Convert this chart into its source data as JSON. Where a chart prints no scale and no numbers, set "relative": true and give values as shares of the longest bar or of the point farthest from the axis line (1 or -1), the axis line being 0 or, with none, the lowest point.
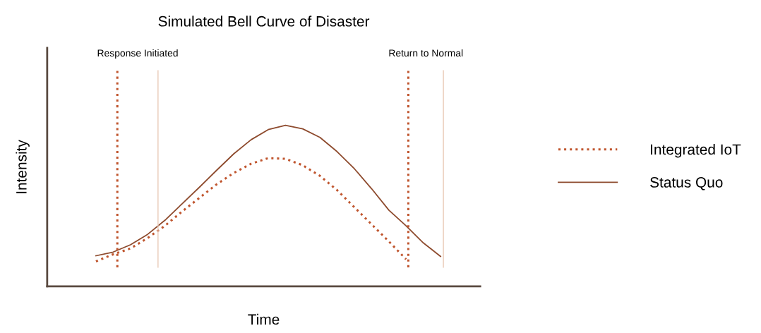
{
  "chart_data": {
    "type": "line",
    "title": "Simulated Bell Curve of Disaster",
    "xlabel": "Time",
    "ylabel": "Intensity",
    "relative": true,
    "categories": [
      null,
      null,
      null,
      null,
      null,
      null,
      null,
      null,
      null,
      null,
      null,
      null,
      null,
      null,
      null,
      null,
      null,
      null,
      null,
      null,
      null
    ],
    "series": [
      {
        "name": "Integrated IoT",
        "color": "#c0562f",
        "line_style": "dotted",
        "values": [
          0.155,
          0.199,
          0.235,
          0.3,
          0.376,
          0.465,
          0.549,
          0.633,
          0.704,
          0.761,
          0.796,
          0.792,
          0.752,
          0.686,
          0.597,
          0.491,
          0.385,
          0.279,
          0.168,
          null,
          null
        ]
      },
      {
        "name": "Status Quo",
        "color": "#8e4b2e",
        "line_style": "solid",
        "values": [
          0.19,
          0.213,
          0.258,
          0.323,
          0.41,
          0.513,
          0.615,
          0.72,
          0.823,
          0.91,
          0.973,
          1.0,
          0.978,
          0.925,
          0.836,
          0.73,
          0.606,
          0.473,
          0.376,
          0.27,
          0.186
        ]
      }
    ],
    "annotations": [
      "Response Initiated",
      "Return to Normal"
    ],
    "legend": "right",
    "marker": "none"
  }
}
